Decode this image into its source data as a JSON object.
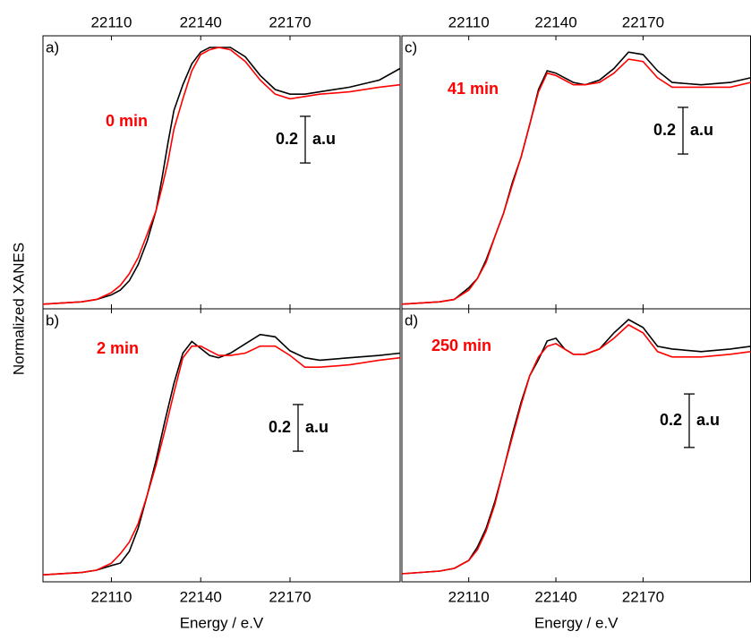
{
  "ylabel": "Normalized XANES",
  "chart_data": [
    {
      "type": "line",
      "panel_label": "a)",
      "annotation": "0 min",
      "x": [
        22087,
        22100,
        22105,
        22110,
        22113,
        22116,
        22119,
        22122,
        22125,
        22127,
        22129,
        22131,
        22134,
        22137,
        22140,
        22143,
        22146,
        22150,
        22155,
        22160,
        22165,
        22170,
        22175,
        22180,
        22190,
        22200,
        22207
      ],
      "series": [
        {
          "color": "#000000",
          "values": [
            0.02,
            0.03,
            0.04,
            0.06,
            0.08,
            0.12,
            0.19,
            0.29,
            0.42,
            0.56,
            0.71,
            0.85,
            0.96,
            1.05,
            1.1,
            1.12,
            1.12,
            1.12,
            1.08,
            1.0,
            0.94,
            0.92,
            0.92,
            0.93,
            0.95,
            0.98,
            1.03
          ]
        },
        {
          "color": "#ff0000",
          "values": [
            0.02,
            0.03,
            0.04,
            0.07,
            0.1,
            0.15,
            0.22,
            0.32,
            0.42,
            0.52,
            0.63,
            0.77,
            0.9,
            1.02,
            1.09,
            1.11,
            1.12,
            1.11,
            1.06,
            0.98,
            0.92,
            0.9,
            0.91,
            0.92,
            0.93,
            0.95,
            0.96
          ]
        }
      ],
      "xlim": [
        22087,
        22207
      ],
      "ylim": [
        0,
        1.17
      ],
      "xticks": [
        22110,
        22140,
        22170
      ],
      "scale_bar": 0.2,
      "scale_unit": "a.u"
    },
    {
      "type": "line",
      "panel_label": "b)",
      "annotation": "2 min",
      "xlabel": "Energy / e.V",
      "x": [
        22087,
        22100,
        22105,
        22110,
        22113,
        22116,
        22119,
        22122,
        22125,
        22128,
        22131,
        22134,
        22137,
        22140,
        22143,
        22146,
        22150,
        22155,
        22160,
        22165,
        22170,
        22175,
        22180,
        22190,
        22200,
        22207
      ],
      "series": [
        {
          "color": "#000000",
          "values": [
            0.03,
            0.04,
            0.05,
            0.07,
            0.08,
            0.13,
            0.23,
            0.37,
            0.52,
            0.69,
            0.85,
            0.98,
            1.03,
            1.0,
            0.97,
            0.96,
            0.98,
            1.02,
            1.06,
            1.05,
            0.99,
            0.96,
            0.95,
            0.96,
            0.97,
            0.98
          ]
        },
        {
          "color": "#ff0000",
          "values": [
            0.03,
            0.04,
            0.05,
            0.08,
            0.12,
            0.17,
            0.25,
            0.37,
            0.5,
            0.65,
            0.81,
            0.96,
            1.01,
            1.01,
            0.99,
            0.97,
            0.97,
            0.98,
            1.01,
            1.01,
            0.97,
            0.92,
            0.92,
            0.93,
            0.95,
            0.96
          ]
        }
      ],
      "xlim": [
        22087,
        22207
      ],
      "ylim": [
        0,
        1.17
      ],
      "xticks": [
        22110,
        22140,
        22170
      ],
      "scale_bar": 0.2,
      "scale_unit": "a.u"
    },
    {
      "type": "line",
      "panel_label": "c)",
      "annotation": "41 min",
      "x": [
        22087,
        22100,
        22105,
        22110,
        22113,
        22116,
        22119,
        22122,
        22125,
        22128,
        22131,
        22134,
        22137,
        22140,
        22143,
        22146,
        22150,
        22155,
        22160,
        22165,
        22170,
        22175,
        22180,
        22190,
        22200,
        22207
      ],
      "series": [
        {
          "color": "#000000",
          "values": [
            0.02,
            0.03,
            0.04,
            0.09,
            0.13,
            0.21,
            0.31,
            0.41,
            0.54,
            0.65,
            0.79,
            0.94,
            1.02,
            1.01,
            0.99,
            0.97,
            0.96,
            0.98,
            1.03,
            1.1,
            1.09,
            1.02,
            0.97,
            0.96,
            0.97,
            0.99
          ]
        },
        {
          "color": "#ff0000",
          "values": [
            0.02,
            0.03,
            0.04,
            0.08,
            0.13,
            0.2,
            0.31,
            0.41,
            0.53,
            0.65,
            0.79,
            0.93,
            1.01,
            1.0,
            0.98,
            0.96,
            0.96,
            0.97,
            1.01,
            1.07,
            1.06,
            0.99,
            0.95,
            0.95,
            0.95,
            0.97
          ]
        }
      ],
      "xlim": [
        22087,
        22207
      ],
      "ylim": [
        0,
        1.17
      ],
      "xticks": [
        22110,
        22140,
        22170
      ],
      "scale_bar": 0.2,
      "scale_unit": "a.u"
    },
    {
      "type": "line",
      "panel_label": "d)",
      "annotation": "250 min",
      "xlabel": "Energy / e.V",
      "x": [
        22087,
        22100,
        22105,
        22110,
        22113,
        22116,
        22119,
        22122,
        22125,
        22128,
        22131,
        22134,
        22137,
        22140,
        22143,
        22146,
        22150,
        22155,
        22160,
        22165,
        22170,
        22175,
        22180,
        22190,
        22200,
        22207
      ],
      "series": [
        {
          "color": "#000000",
          "values": [
            0.03,
            0.04,
            0.05,
            0.08,
            0.13,
            0.2,
            0.3,
            0.42,
            0.55,
            0.67,
            0.77,
            0.83,
            0.9,
            0.91,
            0.87,
            0.85,
            0.85,
            0.87,
            0.93,
            0.98,
            0.95,
            0.88,
            0.87,
            0.86,
            0.87,
            0.88
          ]
        },
        {
          "color": "#ff0000",
          "values": [
            0.03,
            0.04,
            0.05,
            0.08,
            0.12,
            0.19,
            0.29,
            0.42,
            0.54,
            0.66,
            0.77,
            0.84,
            0.88,
            0.89,
            0.87,
            0.85,
            0.85,
            0.87,
            0.91,
            0.96,
            0.93,
            0.86,
            0.84,
            0.84,
            0.85,
            0.86
          ]
        }
      ],
      "xlim": [
        22087,
        22207
      ],
      "ylim": [
        0,
        1.02
      ],
      "xticks": [
        22110,
        22140,
        22170
      ],
      "scale_bar": 0.2,
      "scale_unit": "a.u"
    }
  ]
}
